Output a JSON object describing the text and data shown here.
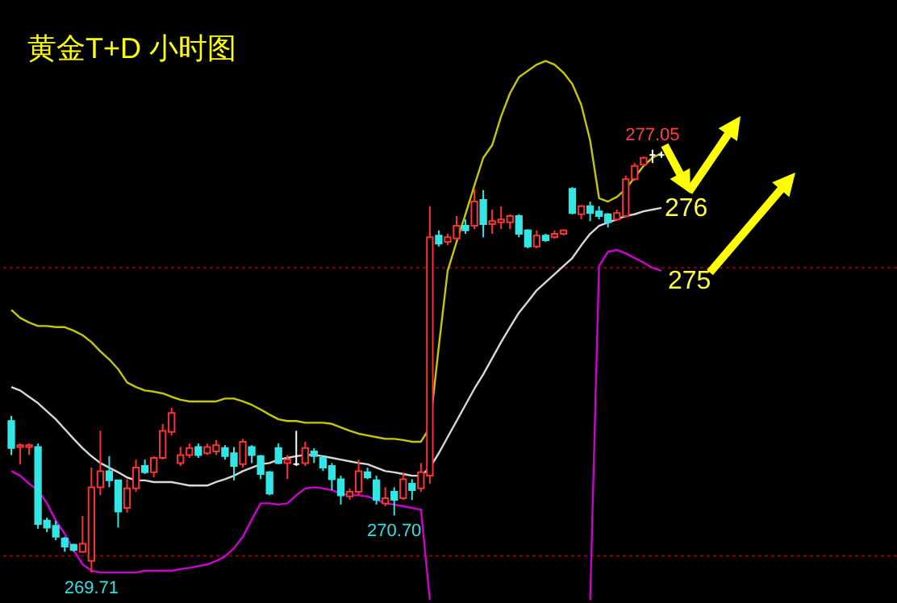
{
  "chart_data": {
    "type": "candlestick",
    "title": "黄金T+D 小时图",
    "categories": [
      null,
      null,
      null,
      null,
      null,
      null,
      null,
      null,
      null,
      null,
      null,
      null,
      null,
      null,
      null,
      null,
      null,
      null,
      null,
      null,
      null,
      null,
      null,
      null,
      null,
      null,
      null,
      null,
      null,
      null,
      null,
      null,
      null,
      null,
      null,
      null,
      null,
      null,
      null,
      null,
      null,
      null,
      null,
      null,
      null,
      null,
      null,
      null,
      null,
      null,
      null,
      null,
      null,
      null,
      null,
      null,
      null,
      null,
      null,
      null,
      null,
      null,
      null,
      null,
      null,
      null,
      null,
      null,
      null,
      null,
      null,
      null,
      null,
      null
    ],
    "ohlc": [
      [
        272.34,
        272.43,
        271.75,
        271.87
      ],
      [
        271.89,
        271.95,
        271.59,
        271.92
      ],
      [
        271.89,
        271.95,
        271.75,
        271.92
      ],
      [
        271.89,
        271.95,
        270.47,
        270.55
      ],
      [
        270.61,
        270.66,
        270.41,
        270.49
      ],
      [
        270.52,
        270.61,
        270.27,
        270.33
      ],
      [
        270.3,
        270.33,
        270.07,
        270.16
      ],
      [
        270.19,
        270.21,
        270.07,
        270.1
      ],
      [
        270.07,
        270.69,
        270.05,
        270.21
      ],
      [
        269.91,
        271.53,
        269.71,
        271.19
      ],
      [
        271.19,
        272.17,
        271.05,
        271.47
      ],
      [
        271.47,
        271.73,
        271.19,
        271.31
      ],
      [
        271.31,
        271.31,
        270.49,
        270.77
      ],
      [
        270.83,
        271.33,
        270.75,
        271.17
      ],
      [
        271.17,
        271.67,
        271.11,
        271.53
      ],
      [
        271.56,
        271.67,
        271.42,
        271.45
      ],
      [
        271.45,
        271.73,
        271.36,
        271.7
      ],
      [
        271.7,
        272.29,
        271.67,
        272.17
      ],
      [
        272.15,
        272.57,
        272.09,
        272.48
      ],
      [
        271.61,
        271.89,
        271.56,
        271.75
      ],
      [
        271.75,
        271.95,
        271.7,
        271.87
      ],
      [
        271.89,
        271.95,
        271.7,
        271.75
      ],
      [
        271.78,
        271.95,
        271.75,
        271.89
      ],
      [
        271.81,
        272.01,
        271.75,
        271.92
      ],
      [
        271.87,
        271.92,
        271.67,
        271.73
      ],
      [
        271.78,
        271.89,
        271.31,
        271.56
      ],
      [
        271.59,
        272.03,
        271.53,
        271.98
      ],
      [
        271.89,
        271.92,
        271.61,
        271.75
      ],
      [
        271.73,
        271.75,
        271.33,
        271.42
      ],
      [
        271.45,
        271.47,
        271.05,
        271.08
      ],
      [
        271.87,
        271.95,
        271.59,
        271.61
      ],
      [
        271.61,
        271.75,
        271.33,
        271.67
      ],
      [
        271.59,
        272.17,
        271.56,
        271.59
      ],
      [
        271.61,
        271.98,
        271.56,
        271.87
      ],
      [
        271.81,
        271.87,
        271.61,
        271.73
      ],
      [
        271.7,
        271.73,
        271.47,
        271.53
      ],
      [
        271.56,
        271.61,
        271.14,
        271.33
      ],
      [
        271.33,
        271.39,
        270.89,
        271.05
      ],
      [
        271.03,
        271.17,
        270.97,
        271.11
      ],
      [
        271.11,
        271.67,
        271.05,
        271.47
      ],
      [
        271.45,
        271.53,
        271.33,
        271.36
      ],
      [
        271.31,
        271.39,
        270.89,
        270.97
      ],
      [
        270.91,
        271.19,
        270.86,
        271.0
      ],
      [
        271.11,
        271.19,
        270.7,
        270.97
      ],
      [
        271.0,
        271.45,
        270.97,
        271.33
      ],
      [
        271.25,
        271.33,
        270.97,
        271.14
      ],
      [
        271.17,
        271.61,
        271.11,
        271.45
      ],
      [
        271.39,
        276.07,
        271.25,
        275.53
      ],
      [
        275.56,
        275.65,
        275.37,
        275.42
      ],
      [
        275.45,
        275.59,
        275.39,
        275.53
      ],
      [
        275.51,
        275.9,
        275.48,
        275.73
      ],
      [
        275.73,
        275.84,
        275.59,
        275.65
      ],
      [
        275.73,
        276.37,
        275.67,
        276.15
      ],
      [
        276.18,
        276.35,
        275.53,
        275.76
      ],
      [
        275.76,
        276.01,
        275.59,
        275.81
      ],
      [
        275.79,
        276.07,
        275.67,
        275.84
      ],
      [
        275.79,
        275.93,
        275.67,
        275.9
      ],
      [
        275.9,
        275.93,
        275.53,
        275.59
      ],
      [
        275.65,
        275.67,
        275.34,
        275.37
      ],
      [
        275.37,
        275.65,
        275.34,
        275.56
      ],
      [
        275.56,
        275.59,
        275.45,
        275.48
      ],
      [
        275.53,
        275.65,
        275.51,
        275.59
      ],
      [
        275.59,
        275.67,
        275.56,
        275.65
      ],
      [
        276.37,
        276.4,
        275.93,
        275.95
      ],
      [
        275.93,
        276.09,
        275.84,
        276.07
      ],
      [
        276.07,
        276.15,
        275.81,
        275.95
      ],
      [
        275.98,
        276.07,
        275.84,
        275.9
      ],
      [
        275.93,
        275.95,
        275.7,
        275.79
      ],
      [
        275.84,
        276.01,
        275.81,
        275.95
      ],
      [
        275.9,
        276.6,
        275.87,
        276.54
      ],
      [
        276.54,
        276.82,
        276.51,
        276.77
      ],
      [
        276.79,
        276.93,
        276.77,
        276.91
      ],
      [
        276.96,
        277.05,
        276.82,
        276.96
      ],
      [
        276.96,
        277.02,
        276.91,
        276.96
      ]
    ],
    "colors": [
      "#33e6e6",
      "#ff3232",
      "#ff3232",
      "#33e6e6",
      "#33e6e6",
      "#33e6e6",
      "#33e6e6",
      "#33e6e6",
      "#ff3232",
      "#ff3232",
      "#ff3232",
      "#33e6e6",
      "#33e6e6",
      "#ff3232",
      "#ff3232",
      "#33e6e6",
      "#ff3232",
      "#ff3232",
      "#ff3232",
      "#ff3232",
      "#ff3232",
      "#33e6e6",
      "#ff3232",
      "#ff3232",
      "#33e6e6",
      "#33e6e6",
      "#ff3232",
      "#33e6e6",
      "#33e6e6",
      "#33e6e6",
      "#33e6e6",
      "#ff3232",
      "#ffffff",
      "#ff3232",
      "#33e6e6",
      "#33e6e6",
      "#33e6e6",
      "#33e6e6",
      "#ff3232",
      "#ff3232",
      "#33e6e6",
      "#33e6e6",
      "#ff3232",
      "#33e6e6",
      "#ff3232",
      "#33e6e6",
      "#ff3232",
      "#ff3232",
      "#33e6e6",
      "#ff3232",
      "#ff3232",
      "#33e6e6",
      "#ff3232",
      "#33e6e6",
      "#ff3232",
      "#ff3232",
      "#ff3232",
      "#33e6e6",
      "#33e6e6",
      "#ff3232",
      "#33e6e6",
      "#ff3232",
      "#ff3232",
      "#33e6e6",
      "#ff3232",
      "#33e6e6",
      "#33e6e6",
      "#33e6e6",
      "#ff3232",
      "#ff3232",
      "#ff3232",
      "#ff3232",
      "#ffffff",
      "#ffffff"
    ],
    "series": [
      {
        "type": "line",
        "color": "#c8c800",
        "values": [
          274.27,
          274.13,
          274.05,
          273.99,
          273.99,
          273.97,
          273.97,
          273.91,
          273.83,
          273.71,
          273.55,
          273.41,
          273.24,
          273.01,
          272.93,
          272.87,
          272.85,
          272.82,
          272.76,
          272.71,
          272.68,
          272.68,
          272.68,
          272.68,
          272.73,
          272.73,
          272.68,
          272.62,
          272.54,
          272.45,
          272.37,
          272.34,
          272.34,
          272.31,
          272.31,
          272.31,
          272.29,
          272.23,
          272.17,
          272.12,
          272.09,
          272.06,
          272.03,
          272.03,
          272.01,
          271.98,
          271.98,
          272.23,
          273.63,
          274.95,
          275.45,
          275.93,
          276.43,
          276.91,
          277.13,
          277.63,
          278.03,
          278.31,
          278.42,
          278.53,
          278.59,
          278.53,
          278.39,
          278.19,
          277.83,
          277.21,
          276.21,
          276.15,
          276.23,
          276.37,
          276.57,
          276.77,
          276.91,
          276.99
        ]
      },
      {
        "type": "line",
        "color": "#d8d8d8",
        "values": [
          272.93,
          272.87,
          272.76,
          272.65,
          272.51,
          272.37,
          272.2,
          272.03,
          271.87,
          271.73,
          271.61,
          271.53,
          271.45,
          271.36,
          271.31,
          271.31,
          271.28,
          271.28,
          271.28,
          271.25,
          271.22,
          271.22,
          271.22,
          271.28,
          271.33,
          271.39,
          271.47,
          271.53,
          271.59,
          271.61,
          271.67,
          271.7,
          271.73,
          271.75,
          271.75,
          271.73,
          271.7,
          271.67,
          271.64,
          271.61,
          271.59,
          271.53,
          271.47,
          271.45,
          271.42,
          271.39,
          271.39,
          271.53,
          271.78,
          272.06,
          272.34,
          272.62,
          272.9,
          273.15,
          273.43,
          273.71,
          273.97,
          274.22,
          274.41,
          274.61,
          274.75,
          274.89,
          275.03,
          275.17,
          275.39,
          275.59,
          275.73,
          275.79,
          275.84,
          275.9,
          275.93,
          275.98,
          276.01,
          276.04
        ]
      },
      {
        "type": "line",
        "color": "#d000d0",
        "values": [
          271.47,
          271.39,
          271.25,
          271.14,
          270.91,
          270.61,
          270.38,
          270.1,
          269.85,
          269.74,
          269.71,
          269.71,
          269.71,
          269.71,
          269.71,
          269.74,
          269.74,
          269.74,
          269.74,
          269.77,
          269.79,
          269.82,
          269.85,
          269.91,
          269.99,
          270.13,
          270.33,
          270.63,
          270.91,
          270.91,
          270.89,
          270.91,
          271.05,
          271.17,
          271.19,
          271.17,
          271.14,
          271.08,
          271.05,
          271.05,
          271.03,
          270.97,
          270.91,
          270.89,
          270.86,
          270.83,
          270.8,
          269.23,
          null,
          null,
          null,
          null,
          null,
          null,
          null,
          null,
          null,
          null,
          null,
          null,
          null,
          null,
          null,
          null,
          null,
          269.23,
          275.03,
          275.28,
          275.31,
          275.25,
          275.17,
          275.09,
          275.0,
          274.95
        ]
      }
    ],
    "ylim": [
      269.18,
      279.65
    ],
    "tick_labels": false,
    "ref_lines": [
      {
        "axis": "y",
        "value": 275,
        "label": null,
        "color": "#8b0000",
        "line_style": "dotted"
      },
      {
        "axis": "y",
        "value": 270,
        "label": null,
        "color": "#8b0000",
        "line_style": "dotted"
      }
    ],
    "annotations": [
      {
        "text": "277.05",
        "y": 277.05
      },
      {
        "text": "269.71",
        "y": 269.71
      },
      {
        "text": "270.70",
        "y": 270.7
      },
      "276",
      "275"
    ]
  }
}
